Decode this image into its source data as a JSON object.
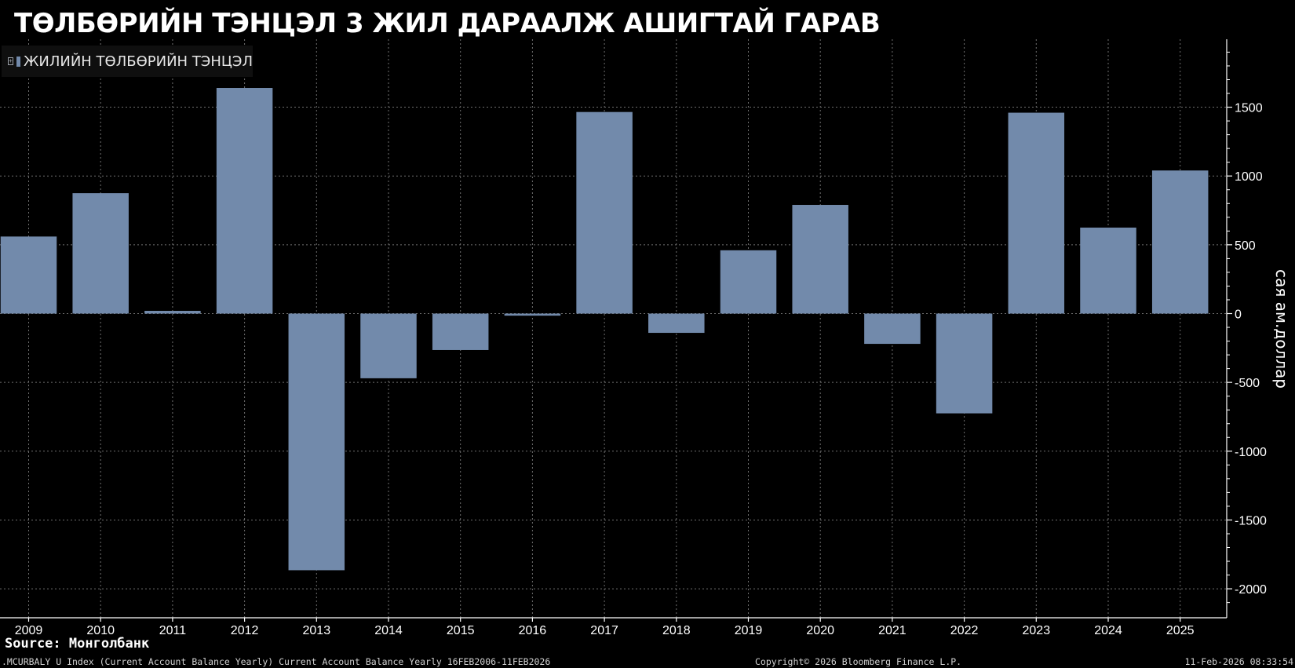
{
  "title": "ТӨЛБӨРИЙН ТЭНЦЭЛ 3 ЖИЛ ДАРААЛЖ АШИГТАЙ ГАРАВ",
  "legend": {
    "toggle_glyph": "+",
    "label": "ЖИЛИЙН ТӨЛБӨРИЙН ТЭНЦЭЛ"
  },
  "source_text": "Source: Монголбанк",
  "footer": {
    "ticker": ".MCURBALY U Index (Current Account Balance Yearly) Current Account Balance Yearly 16FEB2006-11FEB2026",
    "copyright": "Copyright© 2026 Bloomberg Finance L.P.",
    "timestamp": "11-Feb-2026 08:33:54"
  },
  "colors": {
    "background": "#000000",
    "bar": "#728aab",
    "grid": "#6f6f6f",
    "axis": "#ffffff",
    "text": "#ffffff"
  },
  "chart_data": {
    "type": "bar",
    "title": "ТӨЛБӨРИЙН ТЭНЦЭЛ 3 ЖИЛ ДАРААЛЖ АШИГТАЙ ГАРАВ",
    "categories": [
      "2009",
      "2010",
      "2011",
      "2012",
      "2013",
      "2014",
      "2015",
      "2016",
      "2017",
      "2018",
      "2019",
      "2020",
      "2021",
      "2022",
      "2023",
      "2024",
      "2025"
    ],
    "series": [
      {
        "name": "ЖИЛИЙН ТӨЛБӨРИЙН ТЭНЦЭЛ",
        "values": [
          560,
          875,
          20,
          1640,
          -1865,
          -470,
          -265,
          -15,
          1465,
          -140,
          460,
          790,
          -220,
          -725,
          1460,
          625,
          1040
        ]
      }
    ],
    "xlabel": "",
    "ylabel": "сая ам.доллар",
    "ylim": [
      -2200,
      1980
    ],
    "yticks": [
      1500,
      1000,
      500,
      0,
      -500,
      -1000,
      -1500,
      -2000
    ],
    "ytick_labels": [
      "1500",
      "1000",
      "500",
      "0",
      "-500",
      "-1000",
      "-1500",
      "-2000"
    ],
    "y_axis_side": "right",
    "grid": true,
    "legend_position": "top-left"
  }
}
